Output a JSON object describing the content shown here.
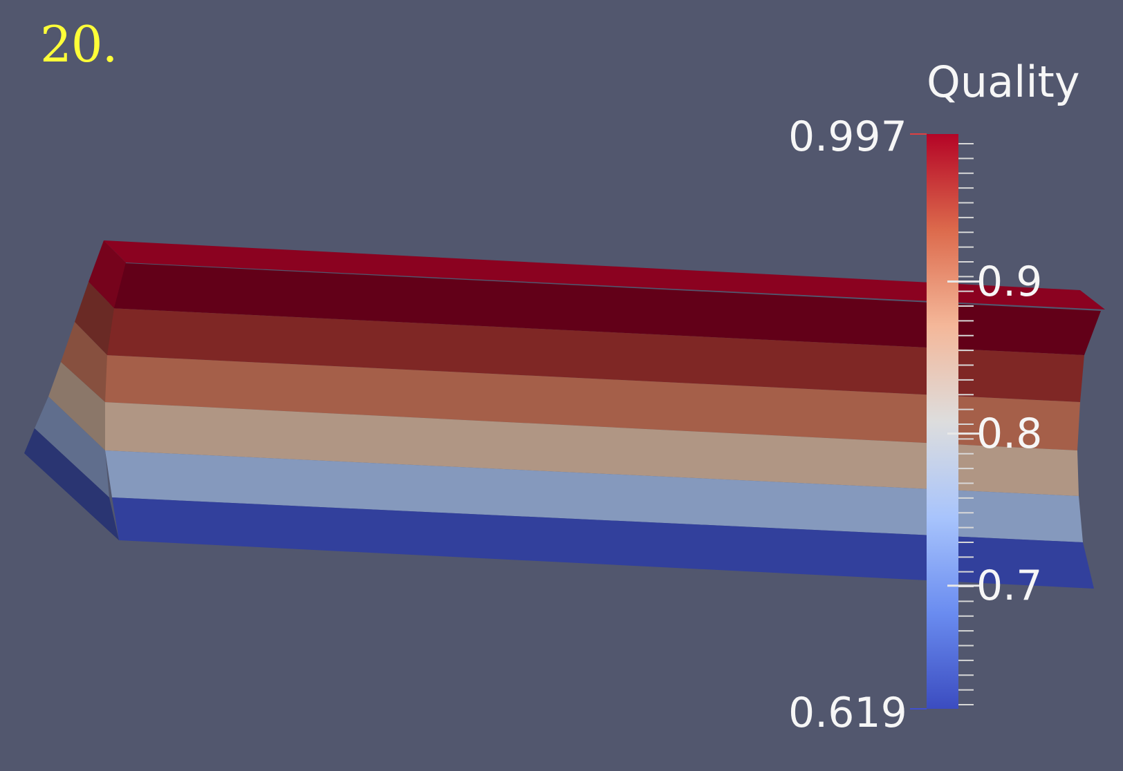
{
  "frame_label": "20.",
  "background_color": "#52576e",
  "label_color": "#ffff38",
  "legend": {
    "title": "Quality",
    "range": [
      0.619,
      0.997
    ],
    "max_label": "0.997",
    "min_label": "0.619",
    "ticks": [
      {
        "value": 0.9,
        "label": "0.9"
      },
      {
        "value": 0.8,
        "label": "0.8"
      },
      {
        "value": 0.7,
        "label": "0.7"
      }
    ],
    "colormap": "Cool to Warm",
    "colormap_stops": [
      "#3b4cc0",
      "#6a8cf0",
      "#a8c4fc",
      "#dddddd",
      "#f4b799",
      "#dc6a4c",
      "#b40426"
    ]
  },
  "mesh": {
    "bands_top_to_bottom": [
      "#8b0220",
      "#620018",
      "#7f2725",
      "#a55f49",
      "#b09684",
      "#8599bd",
      "#32409c"
    ],
    "side_bands_top_to_bottom": [
      "#76031c",
      "#6a2a25",
      "#87503f",
      "#8b7769",
      "#606e8d",
      "#2a3572"
    ]
  }
}
